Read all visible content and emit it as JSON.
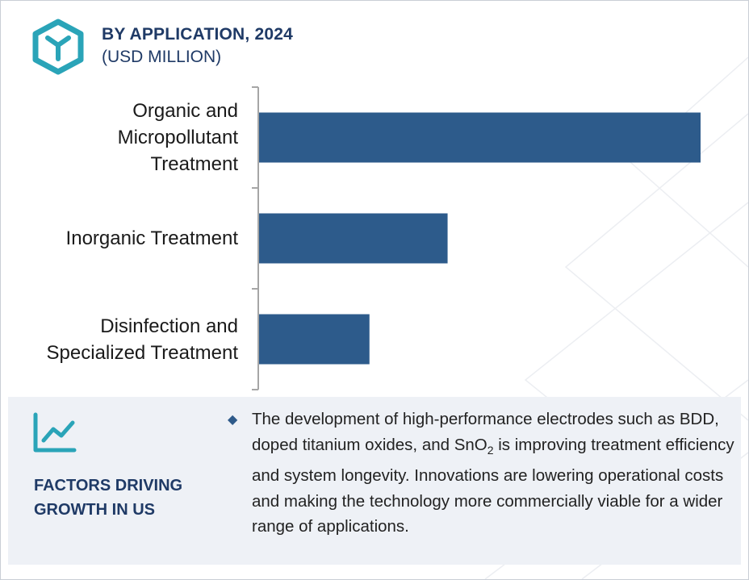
{
  "header": {
    "title": "BY APPLICATION, 2024",
    "subtitle": "(USD MILLION)",
    "logo_icon": "hexagon-y-logo-icon"
  },
  "colors": {
    "bar": "#2d5b8b",
    "title": "#1f3a66",
    "logo": "#2aa4b8",
    "panel_bg": "#eef1f6"
  },
  "chart_data": {
    "type": "bar",
    "orientation": "horizontal",
    "categories": [
      "Organic and Micropollutant Treatment",
      "Inorganic Treatment",
      "Disinfection and Specialized Treatment"
    ],
    "category_lines": [
      [
        "Organic and",
        "Micropollutant",
        "Treatment"
      ],
      [
        "Inorganic Treatment"
      ],
      [
        "Disinfection and",
        "Specialized Treatment"
      ]
    ],
    "values": [
      100,
      42.7,
      25
    ],
    "title": "BY APPLICATION, 2024",
    "subtitle": "(USD MILLION)",
    "xlabel": "",
    "ylabel": "",
    "xlim": [
      0,
      100
    ],
    "grid": false,
    "legend": "none"
  },
  "factors": {
    "icon": "trend-line-icon",
    "heading_lines": [
      "FACTORS DRIVING",
      "GROWTH IN US"
    ],
    "bullet_icon": "diamond-bullet-icon",
    "text_before": "The development of high-performance electrodes such as BDD, doped titanium oxides, and SnO",
    "text_sub": "2",
    "text_after": " is improving treatment efficiency and system longevity. Innovations are lowering operational costs and making the technology more commercially viable for a wider range of applications."
  }
}
